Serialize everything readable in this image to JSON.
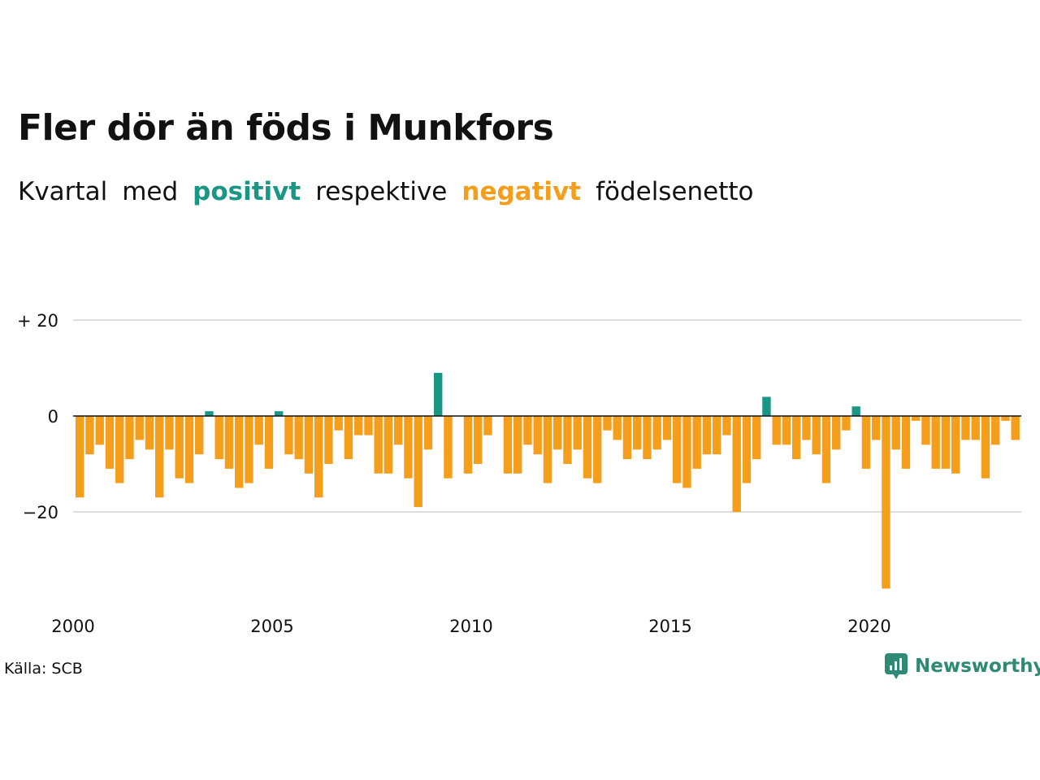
{
  "title": "Fler dör än föds i Munkfors",
  "subtitle": {
    "w1": "Kvartal",
    "w2": "med",
    "positive": "positivt",
    "w3": "respektive",
    "negative": "negativt",
    "w4": "födelsenetto"
  },
  "source": "Källa: SCB",
  "brand": "Newsworthy",
  "colors": {
    "positive": "#1a9685",
    "negative": "#f59e1b",
    "grid": "#dddddd",
    "baseline": "#111111",
    "brand": "#2e8a74"
  },
  "chart_data": {
    "type": "bar",
    "title": "Fler dör än föds i Munkfors",
    "xlabel": "",
    "ylabel": "",
    "x_start": 2000,
    "x_end": 2024,
    "periods_per_year": 4,
    "x_ticks": [
      "2000",
      "2005",
      "2010",
      "2015",
      "2020"
    ],
    "y_ticks": [
      20,
      0,
      -20
    ],
    "y_tick_labels": [
      "+ 20",
      "0",
      "−20"
    ],
    "ylim": [
      -38,
      22
    ],
    "grid": true,
    "values": [
      -17,
      -8,
      -6,
      -11,
      -14,
      -9,
      -5,
      -7,
      -17,
      -7,
      -13,
      -14,
      -8,
      1,
      -9,
      -11,
      -15,
      -14,
      -6,
      -11,
      1,
      -8,
      -9,
      -12,
      -17,
      -10,
      -3,
      -9,
      -4,
      -4,
      -12,
      -12,
      -6,
      -13,
      -19,
      -7,
      9,
      -13,
      0,
      -12,
      -10,
      -4,
      0,
      -12,
      -12,
      -6,
      -8,
      -14,
      -7,
      -10,
      -7,
      -13,
      -14,
      -3,
      -5,
      -9,
      -7,
      -9,
      -7,
      -5,
      -14,
      -15,
      -11,
      -8,
      -8,
      -4,
      -20,
      -14,
      -9,
      4,
      -6,
      -6,
      -9,
      -5,
      -8,
      -14,
      -7,
      -3,
      2,
      -11,
      -5,
      -36,
      -7,
      -11,
      -1,
      -6,
      -11,
      -11,
      -12,
      -5,
      -5,
      -13,
      -6,
      -1,
      -5
    ]
  }
}
